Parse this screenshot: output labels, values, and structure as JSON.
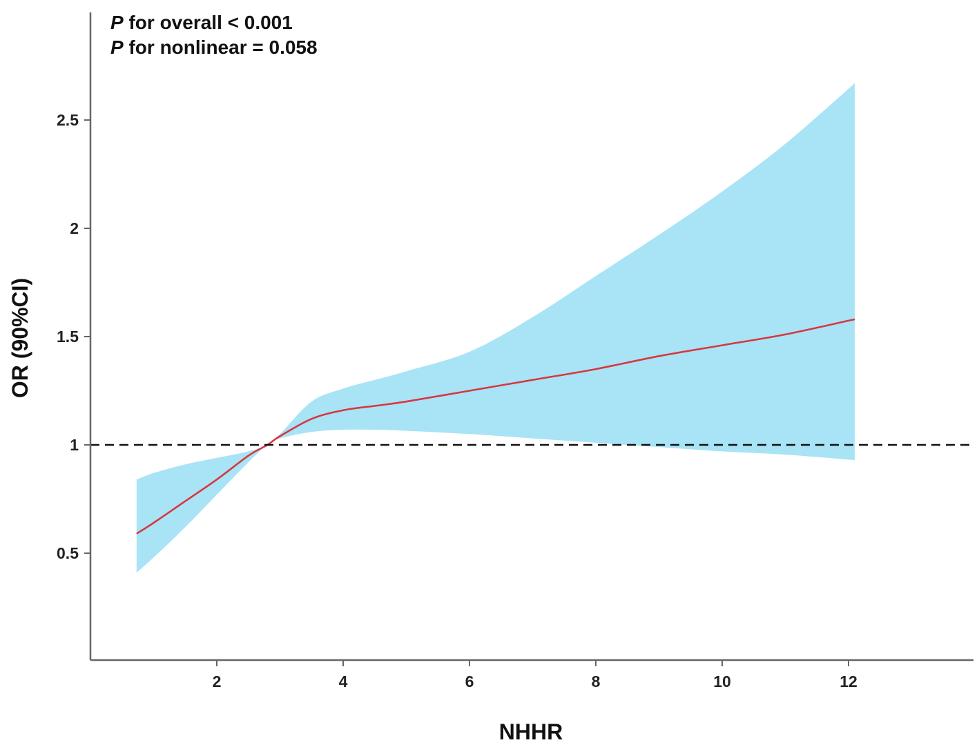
{
  "chart_data": {
    "type": "line",
    "title": "",
    "xlabel": "NHHR",
    "ylabel": "OR (90%CI)",
    "xlim": [
      0,
      14
    ],
    "ylim": [
      0,
      3.05
    ],
    "x_ticks": [
      2,
      4,
      6,
      8,
      10,
      12
    ],
    "y_ticks": [
      0.5,
      1,
      1.5,
      2,
      2.5
    ],
    "x_tick_labels": [
      "2",
      "4",
      "6",
      "8",
      "10",
      "12"
    ],
    "y_tick_labels": [
      "0.5",
      "1",
      "1.5",
      "2",
      "2.5"
    ],
    "grid": false,
    "reference_line": {
      "y": 1,
      "style": "dashed"
    },
    "annotations": [
      {
        "italic": "P",
        "text": " for overall < 0.001"
      },
      {
        "italic": "P",
        "text": " for nonlinear = 0.058"
      }
    ],
    "series": [
      {
        "x": [
          0.73,
          1.0,
          1.5,
          2.0,
          2.5,
          2.8,
          3.0,
          3.5,
          4.0,
          4.5,
          5.0,
          6.0,
          7.0,
          8.0,
          9.0,
          10.0,
          11.0,
          12.1
        ],
        "y": [
          0.59,
          0.64,
          0.74,
          0.84,
          0.95,
          1.0,
          1.04,
          1.12,
          1.16,
          1.18,
          1.2,
          1.25,
          1.3,
          1.35,
          1.41,
          1.46,
          1.51,
          1.58
        ],
        "lower": [
          0.41,
          0.48,
          0.62,
          0.77,
          0.92,
          1.0,
          1.03,
          1.06,
          1.07,
          1.07,
          1.065,
          1.05,
          1.03,
          1.01,
          0.99,
          0.97,
          0.955,
          0.93
        ],
        "upper": [
          0.84,
          0.87,
          0.91,
          0.94,
          0.97,
          1.0,
          1.05,
          1.2,
          1.26,
          1.3,
          1.34,
          1.43,
          1.59,
          1.78,
          1.97,
          2.17,
          2.39,
          2.67
        ]
      }
    ],
    "colors": {
      "line": "#d7373f",
      "ci": "#a8e4f5",
      "reference": "#111111",
      "axis": "#666666"
    }
  }
}
